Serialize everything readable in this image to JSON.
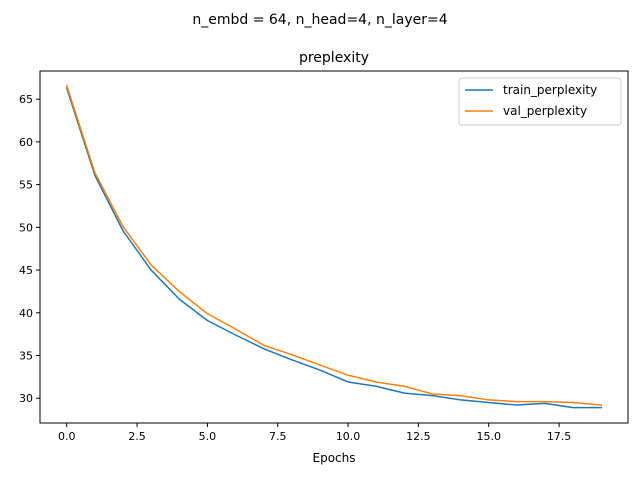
{
  "figure": {
    "suptitle": "n_embd = 64, n_head=4, n_layer=4"
  },
  "chart_data": {
    "type": "line",
    "title": "preplexity",
    "xlabel": "Epochs",
    "ylabel": "",
    "xlim": [
      -0.95,
      19.95
    ],
    "ylim": [
      27.1,
      68.3
    ],
    "xticks": [
      0.0,
      2.5,
      5.0,
      7.5,
      10.0,
      12.5,
      15.0,
      17.5
    ],
    "xtick_labels": [
      "0.0",
      "2.5",
      "5.0",
      "7.5",
      "10.0",
      "12.5",
      "15.0",
      "17.5"
    ],
    "yticks": [
      30,
      35,
      40,
      45,
      50,
      55,
      60,
      65
    ],
    "ytick_labels": [
      "30",
      "35",
      "40",
      "45",
      "50",
      "55",
      "60",
      "65"
    ],
    "grid": false,
    "legend_position": "top-right",
    "x": [
      0,
      1,
      2,
      3,
      4,
      5,
      6,
      7,
      8,
      9,
      10,
      11,
      12,
      13,
      14,
      15,
      16,
      17,
      18,
      19
    ],
    "series": [
      {
        "name": "train_perplexity",
        "color": "#1f77b4",
        "values": [
          66.3,
          56.1,
          49.6,
          45.0,
          41.6,
          39.1,
          37.4,
          35.8,
          34.5,
          33.3,
          31.9,
          31.4,
          30.6,
          30.3,
          29.8,
          29.5,
          29.2,
          29.4,
          28.9,
          28.9
        ]
      },
      {
        "name": "val_perplexity",
        "color": "#ff7f0e",
        "values": [
          66.6,
          56.4,
          50.1,
          45.6,
          42.5,
          39.9,
          38.1,
          36.2,
          35.1,
          33.9,
          32.7,
          31.9,
          31.4,
          30.5,
          30.3,
          29.8,
          29.6,
          29.6,
          29.5,
          29.2
        ]
      }
    ]
  }
}
